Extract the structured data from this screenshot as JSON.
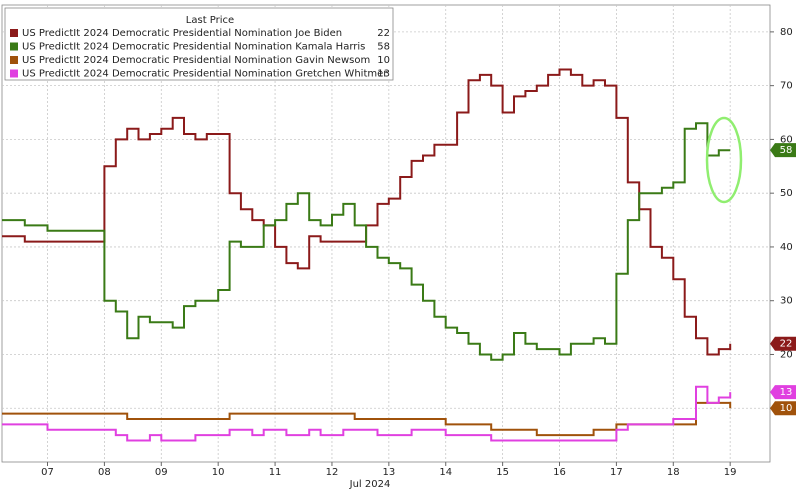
{
  "chart_data": {
    "type": "line",
    "legend_title": "Last Price",
    "xlabel": "Jul 2024",
    "x": [
      6.2,
      6.6,
      7.0,
      7.4,
      7.8,
      8.0,
      8.2,
      8.4,
      8.6,
      8.8,
      9.0,
      9.2,
      9.4,
      9.6,
      9.8,
      10.0,
      10.2,
      10.4,
      10.6,
      10.8,
      11.0,
      11.2,
      11.4,
      11.6,
      11.8,
      12.0,
      12.2,
      12.4,
      12.6,
      12.8,
      13.0,
      13.2,
      13.4,
      13.6,
      13.8,
      14.0,
      14.2,
      14.4,
      14.6,
      14.8,
      15.0,
      15.2,
      15.4,
      15.6,
      15.8,
      16.0,
      16.2,
      16.4,
      16.6,
      16.8,
      17.0,
      17.2,
      17.4,
      17.6,
      17.8,
      18.0,
      18.2,
      18.4,
      18.6,
      18.8,
      19.0
    ],
    "series": [
      {
        "name": "US PredictIt 2024 Democratic Presidential Nomination Joe Biden",
        "color": "#8b1a1a",
        "values": [
          42,
          41,
          41,
          41,
          41,
          55,
          60,
          62,
          60,
          61,
          62,
          64,
          61,
          60,
          61,
          61,
          50,
          47,
          45,
          44,
          40,
          37,
          36,
          42,
          41,
          41,
          41,
          41,
          44,
          48,
          49,
          53,
          56,
          57,
          59,
          59,
          65,
          71,
          72,
          70,
          65,
          68,
          69,
          70,
          72,
          73,
          72,
          70,
          71,
          70,
          64,
          52,
          47,
          40,
          38,
          34,
          27,
          23,
          20,
          21,
          22
        ]
      },
      {
        "name": "US PredictIt 2024 Democratic Presidential Nomination Kamala Harris",
        "color": "#3a7a16",
        "values": [
          45,
          44,
          43,
          43,
          43,
          30,
          28,
          23,
          27,
          26,
          26,
          25,
          29,
          30,
          30,
          32,
          41,
          40,
          40,
          44,
          45,
          48,
          50,
          45,
          44,
          46,
          48,
          44,
          40,
          38,
          37,
          36,
          33,
          30,
          27,
          25,
          24,
          22,
          20,
          19,
          20,
          24,
          22,
          21,
          21,
          20,
          22,
          22,
          23,
          22,
          35,
          45,
          50,
          50,
          51,
          52,
          62,
          63,
          57,
          58,
          58
        ]
      },
      {
        "name": "US PredictIt 2024 Democratic Presidential Nomination Gavin Newsom",
        "color": "#a0520b",
        "values": [
          9,
          9,
          9,
          9,
          9,
          9,
          9,
          8,
          8,
          8,
          8,
          8,
          8,
          8,
          8,
          8,
          9,
          9,
          9,
          9,
          9,
          9,
          9,
          9,
          9,
          9,
          9,
          8,
          8,
          8,
          8,
          8,
          8,
          8,
          8,
          7,
          7,
          7,
          7,
          6,
          6,
          6,
          6,
          5,
          5,
          5,
          5,
          5,
          6,
          6,
          7,
          7,
          7,
          7,
          7,
          7,
          7,
          11,
          11,
          11,
          10
        ]
      },
      {
        "name": "US PredictIt 2024 Democratic Presidential Nomination Gretchen Whitmer",
        "color": "#e040e0",
        "values": [
          7,
          7,
          6,
          6,
          6,
          6,
          5,
          4,
          4,
          5,
          4,
          4,
          4,
          5,
          5,
          5,
          6,
          6,
          5,
          6,
          6,
          5,
          5,
          6,
          5,
          5,
          6,
          6,
          6,
          5,
          5,
          5,
          6,
          6,
          6,
          5,
          5,
          5,
          5,
          4,
          4,
          4,
          4,
          4,
          4,
          4,
          4,
          4,
          4,
          4,
          6,
          7,
          7,
          7,
          7,
          8,
          8,
          14,
          11,
          12,
          13
        ]
      }
    ],
    "xlim": [
      6.2,
      19.7
    ],
    "xticks": [
      {
        "value": 7,
        "label": "07"
      },
      {
        "value": 8,
        "label": "08"
      },
      {
        "value": 9,
        "label": "09"
      },
      {
        "value": 10,
        "label": "10"
      },
      {
        "value": 11,
        "label": "11"
      },
      {
        "value": 12,
        "label": "12"
      },
      {
        "value": 13,
        "label": "13"
      },
      {
        "value": 14,
        "label": "14"
      },
      {
        "value": 15,
        "label": "15"
      },
      {
        "value": 16,
        "label": "16"
      },
      {
        "value": 17,
        "label": "17"
      },
      {
        "value": 18,
        "label": "18"
      },
      {
        "value": 19,
        "label": "19"
      }
    ],
    "ylim": [
      0,
      85
    ],
    "yticks": [
      10,
      20,
      30,
      40,
      50,
      60,
      70,
      80
    ],
    "grid": true
  }
}
